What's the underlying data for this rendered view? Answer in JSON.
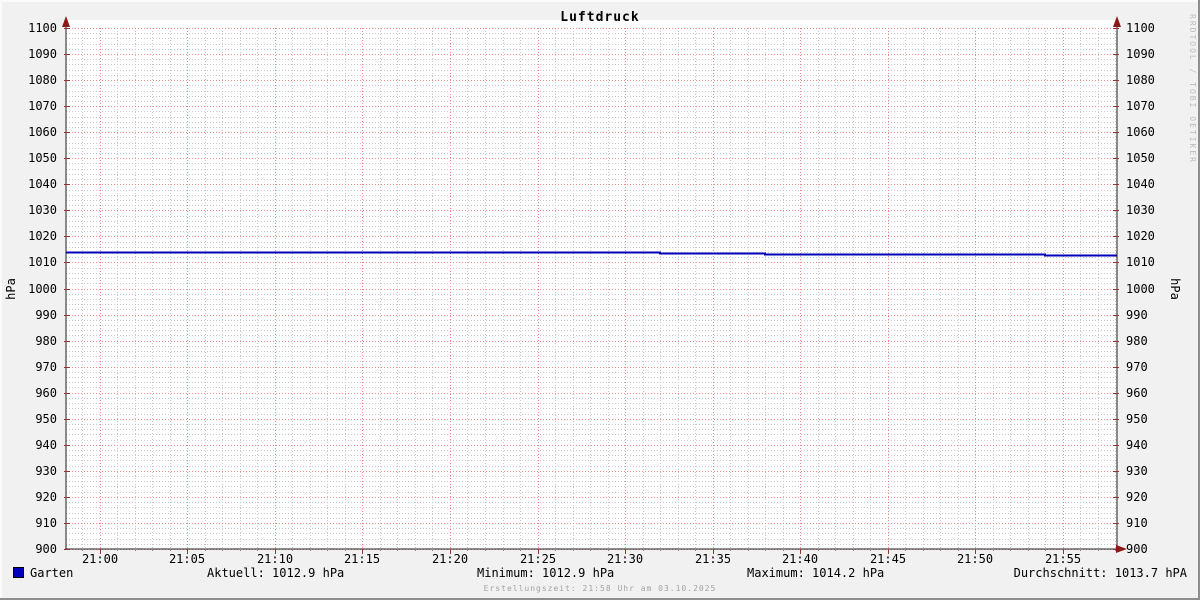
{
  "title": "Luftdruck",
  "watermark": "RRDTOOL / TOBI OETIKER",
  "y_axis_label_left": "hPa",
  "y_axis_label_right": "hPa",
  "legend": {
    "series_label": "Garten",
    "aktuell": "Aktuell: 1012.9 hPa",
    "minimum": "Minimum: 1012.9 hPa",
    "maximum": "Maximum: 1014.2 hPa",
    "durchschnitt": "Durchschnitt: 1013.7 hPA"
  },
  "footer": "Erstellungszeit: 21:58 Uhr am 03.10.2025",
  "colors": {
    "background": "#f1f1f1",
    "canvas": "#ffffff",
    "line": "#0000b8",
    "legend_square": "#0000b8",
    "major_grid": "#ea8a8a",
    "minor_grid": "#c9c9c9",
    "axis": "#1f1f1f",
    "arrow": "#8b1a1a",
    "tick_major": "#993333",
    "tick_minor": "#8a8a8a",
    "watermark": "#bdbdbd",
    "footer_text": "#a3a3a3"
  },
  "chart_data": {
    "type": "line",
    "title": "Luftdruck",
    "ylabel": "hPa",
    "ylabel_right": "hPa",
    "ylim": [
      900,
      1100
    ],
    "y_major_step": 10,
    "y_minor_step": 2,
    "y_ticks": [
      900,
      910,
      920,
      930,
      940,
      950,
      960,
      970,
      980,
      990,
      1000,
      1010,
      1020,
      1030,
      1040,
      1050,
      1060,
      1070,
      1080,
      1090,
      1100
    ],
    "xlim_minutes": [
      -1.94,
      58.11
    ],
    "x_major_step_min": 5,
    "x_minor_step_min": 1,
    "x_ticks": [
      {
        "minute": 0,
        "label": "21:00"
      },
      {
        "minute": 5,
        "label": "21:05"
      },
      {
        "minute": 10,
        "label": "21:10"
      },
      {
        "minute": 15,
        "label": "21:15"
      },
      {
        "minute": 20,
        "label": "21:20"
      },
      {
        "minute": 25,
        "label": "21:25"
      },
      {
        "minute": 30,
        "label": "21:30"
      },
      {
        "minute": 35,
        "label": "21:35"
      },
      {
        "minute": 40,
        "label": "21:40"
      },
      {
        "minute": 45,
        "label": "21:45"
      },
      {
        "minute": 50,
        "label": "21:50"
      },
      {
        "minute": 55,
        "label": "21:55"
      }
    ],
    "grid": true,
    "legend_position": "bottom",
    "series": [
      {
        "name": "Garten",
        "color": "#0000b8",
        "points": [
          [
            -1.94,
            1013.9
          ],
          [
            32,
            1013.9
          ],
          [
            32,
            1013.5
          ],
          [
            38,
            1013.5
          ],
          [
            38,
            1013.2
          ],
          [
            54,
            1013.2
          ],
          [
            54,
            1012.9
          ],
          [
            58.11,
            1012.9
          ]
        ]
      }
    ],
    "stats": {
      "aktuell_hpa": 1012.9,
      "minimum_hpa": 1012.9,
      "maximum_hpa": 1014.2,
      "durchschnitt_hpa": 1013.7
    }
  }
}
